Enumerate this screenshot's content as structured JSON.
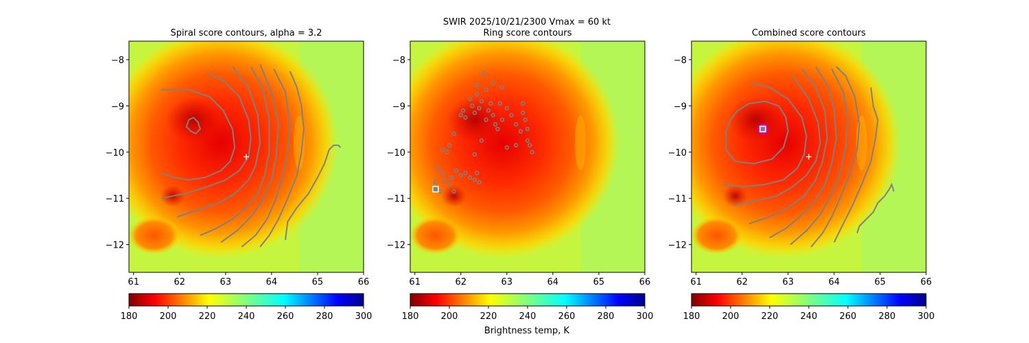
{
  "figure": {
    "suptitle_line1": "SWIR  2025/10/21/2300    Vmax = 60 kt",
    "colorbar_label": "Brightness temp, K",
    "colors": {
      "contour": "#808080",
      "cold_core": "#8b0000",
      "center_marker": "#ffffff",
      "best_marker_ring": "#cc00ff"
    }
  },
  "chart_data": [
    {
      "type": "heatmap",
      "title": "Spiral score contours, alpha =  3.2",
      "xlim": [
        60.9,
        66.0
      ],
      "ylim": [
        -12.6,
        -7.6
      ],
      "xticks": [
        "61",
        "62",
        "63",
        "64",
        "65",
        "66"
      ],
      "yticks": [
        "−8",
        "−9",
        "−10",
        "−11",
        "−12"
      ],
      "center_marker": {
        "lon": 63.45,
        "lat": -10.1
      },
      "contours": [
        [
          [
            62.3,
            -9.25
          ],
          [
            62.4,
            -9.35
          ],
          [
            62.45,
            -9.5
          ],
          [
            62.35,
            -9.6
          ],
          [
            62.25,
            -9.55
          ],
          [
            62.15,
            -9.45
          ],
          [
            62.2,
            -9.3
          ],
          [
            62.3,
            -9.25
          ]
        ],
        [
          [
            61.6,
            -10.45
          ],
          [
            61.9,
            -10.55
          ],
          [
            62.2,
            -10.6
          ],
          [
            62.55,
            -10.55
          ],
          [
            62.9,
            -10.4
          ],
          [
            63.1,
            -10.2
          ],
          [
            63.2,
            -9.9
          ],
          [
            63.15,
            -9.5
          ],
          [
            62.95,
            -9.1
          ],
          [
            62.65,
            -8.8
          ],
          [
            62.2,
            -8.65
          ],
          [
            61.6,
            -8.65
          ]
        ],
        [
          [
            61.6,
            -11.0
          ],
          [
            62.1,
            -10.9
          ],
          [
            62.6,
            -10.75
          ],
          [
            63.0,
            -10.6
          ],
          [
            63.3,
            -10.4
          ],
          [
            63.5,
            -10.1
          ],
          [
            63.55,
            -9.7
          ],
          [
            63.5,
            -9.3
          ],
          [
            63.3,
            -8.8
          ],
          [
            62.95,
            -8.45
          ],
          [
            62.6,
            -8.3
          ]
        ],
        [
          [
            61.95,
            -11.4
          ],
          [
            62.4,
            -11.25
          ],
          [
            62.85,
            -11.1
          ],
          [
            63.2,
            -10.9
          ],
          [
            63.5,
            -10.6
          ],
          [
            63.65,
            -10.3
          ],
          [
            63.75,
            -9.8
          ],
          [
            63.7,
            -9.2
          ],
          [
            63.5,
            -8.6
          ],
          [
            63.15,
            -8.15
          ]
        ],
        [
          [
            62.45,
            -11.8
          ],
          [
            62.8,
            -11.65
          ],
          [
            63.15,
            -11.45
          ],
          [
            63.45,
            -11.2
          ],
          [
            63.7,
            -10.9
          ],
          [
            63.85,
            -10.5
          ],
          [
            63.95,
            -10.0
          ],
          [
            63.95,
            -9.3
          ],
          [
            63.8,
            -8.6
          ],
          [
            63.55,
            -8.15
          ]
        ],
        [
          [
            62.9,
            -11.95
          ],
          [
            63.25,
            -11.7
          ],
          [
            63.55,
            -11.4
          ],
          [
            63.8,
            -11.05
          ],
          [
            64.0,
            -10.6
          ],
          [
            64.1,
            -10.1
          ],
          [
            64.15,
            -9.4
          ],
          [
            64.0,
            -8.7
          ],
          [
            63.75,
            -8.1
          ]
        ],
        [
          [
            63.35,
            -12.05
          ],
          [
            63.65,
            -11.8
          ],
          [
            63.9,
            -11.45
          ],
          [
            64.1,
            -11.0
          ],
          [
            64.25,
            -10.5
          ],
          [
            64.35,
            -10.0
          ],
          [
            64.4,
            -9.4
          ],
          [
            64.3,
            -8.7
          ],
          [
            64.05,
            -8.2
          ]
        ],
        [
          [
            63.75,
            -12.05
          ],
          [
            63.95,
            -11.8
          ],
          [
            64.15,
            -11.45
          ],
          [
            64.35,
            -11.0
          ],
          [
            64.55,
            -10.5
          ],
          [
            64.65,
            -10.0
          ],
          [
            64.7,
            -9.5
          ],
          [
            64.65,
            -9.0
          ],
          [
            64.55,
            -8.6
          ],
          [
            64.4,
            -8.25
          ]
        ],
        [
          [
            64.3,
            -11.9
          ],
          [
            64.35,
            -11.5
          ],
          [
            64.55,
            -11.2
          ],
          [
            64.8,
            -10.9
          ],
          [
            65.0,
            -10.55
          ],
          [
            65.15,
            -10.25
          ],
          [
            65.25,
            -9.95
          ],
          [
            65.35,
            -9.85
          ],
          [
            65.45,
            -9.85
          ],
          [
            65.5,
            -9.9
          ]
        ]
      ]
    },
    {
      "type": "heatmap",
      "title": "Ring score contours",
      "xlim": [
        60.9,
        66.0
      ],
      "ylim": [
        -12.6,
        -7.6
      ],
      "xticks": [
        "61",
        "62",
        "63",
        "64",
        "65",
        "66"
      ],
      "yticks": [
        "−8",
        "−9",
        "−10",
        "−11",
        "−12"
      ],
      "best_marker": {
        "lon": 61.45,
        "lat": -10.8
      },
      "scatter_blobs": [
        [
          62.0,
          -9.2
        ],
        [
          62.05,
          -9.1
        ],
        [
          62.1,
          -9.25
        ],
        [
          62.2,
          -8.85
        ],
        [
          62.25,
          -9.0
        ],
        [
          62.3,
          -9.15
        ],
        [
          62.35,
          -8.75
        ],
        [
          62.4,
          -9.05
        ],
        [
          62.45,
          -8.9
        ],
        [
          62.55,
          -9.3
        ],
        [
          62.6,
          -9.1
        ],
        [
          62.65,
          -8.95
        ],
        [
          62.7,
          -9.2
        ],
        [
          62.75,
          -9.4
        ],
        [
          62.8,
          -9.5
        ],
        [
          62.85,
          -8.95
        ],
        [
          62.9,
          -9.3
        ],
        [
          63.0,
          -9.05
        ],
        [
          63.1,
          -9.2
        ],
        [
          63.2,
          -9.4
        ],
        [
          63.3,
          -9.55
        ],
        [
          63.35,
          -9.15
        ],
        [
          63.4,
          -9.3
        ],
        [
          63.45,
          -9.75
        ],
        [
          63.5,
          -9.85
        ],
        [
          63.55,
          -10.0
        ],
        [
          63.45,
          -9.5
        ],
        [
          62.55,
          -8.65
        ],
        [
          62.7,
          -8.5
        ],
        [
          62.35,
          -8.55
        ],
        [
          61.85,
          -9.6
        ],
        [
          61.75,
          -9.85
        ],
        [
          61.7,
          -10.0
        ],
        [
          61.5,
          -10.35
        ],
        [
          61.6,
          -10.45
        ],
        [
          61.65,
          -10.6
        ],
        [
          61.75,
          -10.7
        ],
        [
          61.85,
          -10.85
        ],
        [
          61.8,
          -10.55
        ],
        [
          62.0,
          -10.5
        ],
        [
          62.1,
          -10.45
        ],
        [
          62.2,
          -10.55
        ],
        [
          62.3,
          -10.6
        ],
        [
          62.4,
          -10.65
        ],
        [
          62.35,
          -10.45
        ],
        [
          61.9,
          -10.4
        ],
        [
          61.45,
          -10.65
        ],
        [
          61.55,
          -10.85
        ],
        [
          63.0,
          -9.9
        ],
        [
          63.2,
          -9.85
        ],
        [
          62.45,
          -9.75
        ],
        [
          62.3,
          -10.05
        ],
        [
          62.5,
          -8.3
        ],
        [
          63.35,
          -8.95
        ],
        [
          61.6,
          -9.95
        ],
        [
          62.9,
          -8.6
        ]
      ]
    },
    {
      "type": "heatmap",
      "title": "Combined score contours",
      "xlim": [
        60.9,
        66.0
      ],
      "ylim": [
        -12.6,
        -7.6
      ],
      "xticks": [
        "61",
        "62",
        "63",
        "64",
        "65",
        "66"
      ],
      "yticks": [
        "−8",
        "−9",
        "−10",
        "−11",
        "−12"
      ],
      "center_marker": {
        "lon": 63.45,
        "lat": -10.1
      },
      "best_marker": {
        "lon": 62.45,
        "lat": -9.5
      },
      "contours": [
        [
          [
            61.9,
            -9.1
          ],
          [
            62.15,
            -8.95
          ],
          [
            62.5,
            -8.9
          ],
          [
            62.8,
            -9.0
          ],
          [
            62.95,
            -9.25
          ],
          [
            63.0,
            -9.55
          ],
          [
            62.9,
            -9.9
          ],
          [
            62.65,
            -10.15
          ],
          [
            62.25,
            -10.25
          ],
          [
            61.85,
            -10.2
          ],
          [
            61.65,
            -9.95
          ],
          [
            61.65,
            -9.55
          ],
          [
            61.75,
            -9.3
          ],
          [
            61.9,
            -9.1
          ]
        ],
        [
          [
            61.6,
            -10.7
          ],
          [
            62.0,
            -10.75
          ],
          [
            62.5,
            -10.7
          ],
          [
            62.9,
            -10.6
          ],
          [
            63.2,
            -10.35
          ],
          [
            63.35,
            -10.05
          ],
          [
            63.4,
            -9.65
          ],
          [
            63.3,
            -9.25
          ],
          [
            63.0,
            -8.85
          ],
          [
            62.6,
            -8.6
          ],
          [
            62.2,
            -8.5
          ]
        ],
        [
          [
            61.8,
            -11.15
          ],
          [
            62.3,
            -11.05
          ],
          [
            62.75,
            -10.95
          ],
          [
            63.1,
            -10.75
          ],
          [
            63.4,
            -10.5
          ],
          [
            63.6,
            -10.2
          ],
          [
            63.7,
            -9.8
          ],
          [
            63.65,
            -9.35
          ],
          [
            63.45,
            -8.85
          ],
          [
            63.1,
            -8.35
          ]
        ],
        [
          [
            62.15,
            -11.55
          ],
          [
            62.6,
            -11.4
          ],
          [
            63.0,
            -11.2
          ],
          [
            63.35,
            -10.95
          ],
          [
            63.6,
            -10.6
          ],
          [
            63.75,
            -10.2
          ],
          [
            63.85,
            -9.7
          ],
          [
            63.8,
            -9.1
          ],
          [
            63.6,
            -8.6
          ],
          [
            63.3,
            -8.2
          ]
        ],
        [
          [
            62.6,
            -11.85
          ],
          [
            62.95,
            -11.65
          ],
          [
            63.25,
            -11.4
          ],
          [
            63.55,
            -11.1
          ],
          [
            63.8,
            -10.7
          ],
          [
            63.95,
            -10.25
          ],
          [
            64.05,
            -9.7
          ],
          [
            64.0,
            -9.05
          ],
          [
            63.85,
            -8.55
          ],
          [
            63.6,
            -8.15
          ]
        ],
        [
          [
            63.05,
            -12.0
          ],
          [
            63.4,
            -11.7
          ],
          [
            63.7,
            -11.35
          ],
          [
            63.95,
            -10.9
          ],
          [
            64.15,
            -10.4
          ],
          [
            64.25,
            -9.9
          ],
          [
            64.3,
            -9.3
          ],
          [
            64.2,
            -8.7
          ],
          [
            63.95,
            -8.2
          ]
        ],
        [
          [
            63.5,
            -12.05
          ],
          [
            63.75,
            -11.75
          ],
          [
            63.95,
            -11.4
          ],
          [
            64.15,
            -10.95
          ],
          [
            64.35,
            -10.45
          ],
          [
            64.5,
            -9.95
          ],
          [
            64.55,
            -9.4
          ],
          [
            64.45,
            -8.8
          ],
          [
            64.25,
            -8.35
          ],
          [
            64.05,
            -8.15
          ]
        ],
        [
          [
            64.0,
            -11.95
          ],
          [
            64.2,
            -11.55
          ],
          [
            64.4,
            -11.15
          ],
          [
            64.6,
            -10.7
          ],
          [
            64.8,
            -10.2
          ],
          [
            64.9,
            -9.7
          ],
          [
            64.95,
            -9.3
          ],
          [
            64.85,
            -9.0
          ],
          [
            64.8,
            -8.6
          ]
        ],
        [
          [
            64.5,
            -11.75
          ],
          [
            64.55,
            -11.6
          ],
          [
            64.7,
            -11.45
          ],
          [
            64.85,
            -11.3
          ],
          [
            64.95,
            -11.1
          ],
          [
            65.1,
            -10.95
          ],
          [
            65.2,
            -10.8
          ],
          [
            65.25,
            -10.7
          ],
          [
            65.3,
            -10.85
          ]
        ]
      ]
    }
  ],
  "colorbar": {
    "vmin": 180,
    "vmax": 300,
    "ticks": [
      "180",
      "200",
      "220",
      "240",
      "260",
      "280",
      "300"
    ],
    "colormap": "jet_r"
  }
}
